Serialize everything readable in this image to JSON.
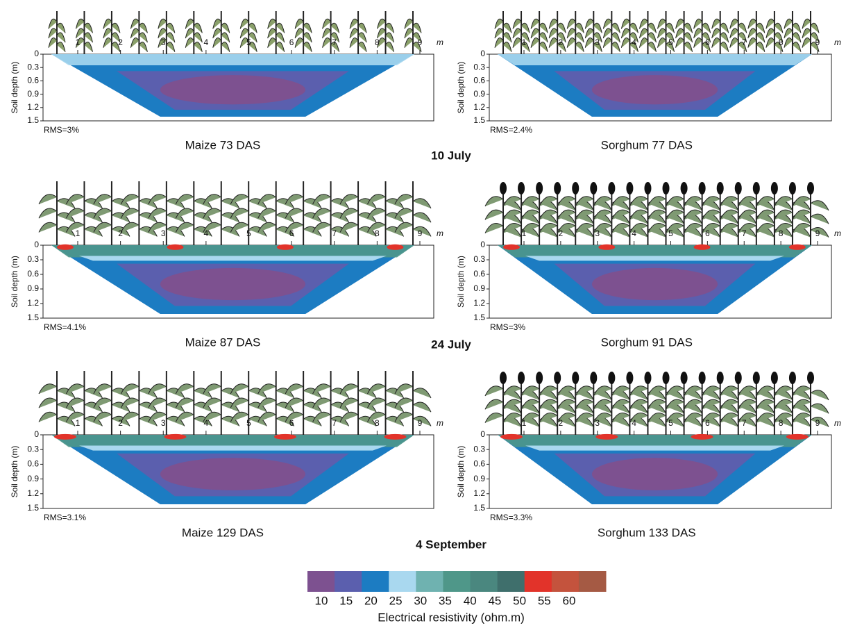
{
  "panels": [
    {
      "title": "Maize 73 DAS",
      "rms": "RMS=3%"
    },
    {
      "title": "Sorghum 77 DAS",
      "rms": "RMS=2.4%"
    },
    {
      "title": "Maize 87 DAS",
      "rms": "RMS=4.1%"
    },
    {
      "title": "Sorghum 91 DAS",
      "rms": "RMS=3%"
    },
    {
      "title": "Maize 129 DAS",
      "rms": "RMS=3.1%"
    },
    {
      "title": "Sorghum 133 DAS",
      "rms": "RMS=3.3%"
    }
  ],
  "dates": [
    "10 July",
    "24 July",
    "4 September"
  ],
  "y_label": "Soil depth (m)",
  "depth_ticks": [
    0,
    0.3,
    0.6,
    0.9,
    1.2,
    1.5
  ],
  "distance_ticks": [
    1,
    2,
    3,
    4,
    5,
    6,
    7,
    8,
    9
  ],
  "distance_unit": "m",
  "colorbar": {
    "colors": [
      "#7d5190",
      "#5b5fae",
      "#1c7cc2",
      "#a9d8ef",
      "#6fb2b0",
      "#4f9789",
      "#4a877f",
      "#3f6f6c",
      "#e2332a",
      "#c4533d",
      "#a55a44"
    ],
    "ticks": [
      10,
      15,
      20,
      25,
      30,
      35,
      40,
      45,
      50,
      55,
      60
    ],
    "label": "Electrical resistivity (ohm.m)"
  }
}
